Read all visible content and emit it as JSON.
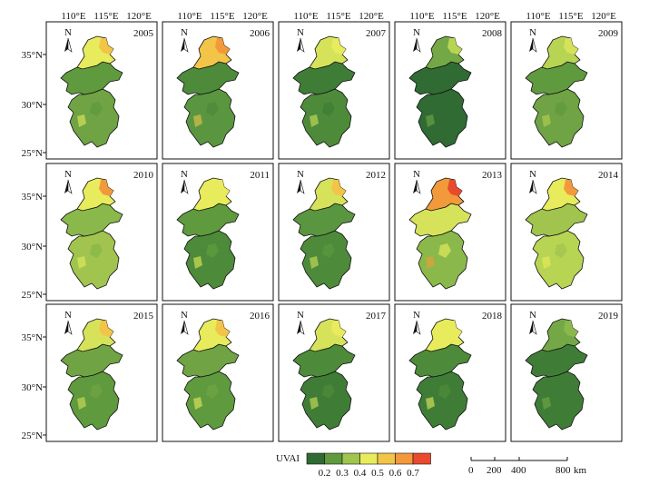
{
  "grid": {
    "top_ticks": [
      "110°E",
      "115°E",
      "120°E"
    ],
    "left_ticks": [
      "35°N",
      "30°N",
      "25°N"
    ],
    "north_label": "N",
    "years": [
      "2005",
      "2006",
      "2007",
      "2008",
      "2009",
      "2010",
      "2011",
      "2012",
      "2013",
      "2014",
      "2015",
      "2016",
      "2017",
      "2018",
      "2019"
    ]
  },
  "maps": [
    {
      "year": "2005",
      "north": "#e8ec5c",
      "central": "#5f9a3e",
      "south": "#6fa343",
      "north_tip": "#f2c548"
    },
    {
      "year": "2006",
      "north": "#f2c548",
      "central": "#4d8a3a",
      "south": "#5a9640",
      "north_tip": "#f29a3b"
    },
    {
      "year": "2007",
      "north": "#d6e35a",
      "central": "#3f7d37",
      "south": "#4d8a3a",
      "north_tip": "#e8ec5c"
    },
    {
      "year": "2008",
      "north": "#74a846",
      "central": "#2f6b33",
      "south": "#2f6b33",
      "north_tip": "#b8d453"
    },
    {
      "year": "2009",
      "north": "#b8d453",
      "central": "#5f9a3e",
      "south": "#6fa343",
      "north_tip": "#d6e35a"
    },
    {
      "year": "2010",
      "north": "#e8ec5c",
      "central": "#8ab84a",
      "south": "#a0c44e",
      "north_tip": "#f29a3b"
    },
    {
      "year": "2011",
      "north": "#e8ec5c",
      "central": "#5f9a3e",
      "south": "#4d8a3a",
      "north_tip": "#e8ec5c"
    },
    {
      "year": "2012",
      "north": "#d6e35a",
      "central": "#5a9640",
      "south": "#4d8a3a",
      "north_tip": "#f2c548"
    },
    {
      "year": "2013",
      "north": "#f29a3b",
      "central": "#d6e35a",
      "south": "#8ab84a",
      "north_tip": "#e94a2d"
    },
    {
      "year": "2014",
      "north": "#e8ec5c",
      "central": "#a0c44e",
      "south": "#b8d453",
      "north_tip": "#f29a3b"
    },
    {
      "year": "2015",
      "north": "#d6e35a",
      "central": "#6fa343",
      "south": "#5f9a3e",
      "north_tip": "#f2c548"
    },
    {
      "year": "2016",
      "north": "#e8ec5c",
      "central": "#6fa343",
      "south": "#5f9a3e",
      "north_tip": "#f2c548"
    },
    {
      "year": "2017",
      "north": "#d6e35a",
      "central": "#4d8a3a",
      "south": "#3f7d37",
      "north_tip": "#e8ec5c"
    },
    {
      "year": "2018",
      "north": "#e8ec5c",
      "central": "#4d8a3a",
      "south": "#3f7d37",
      "north_tip": "#e8ec5c"
    },
    {
      "year": "2019",
      "north": "#74a846",
      "central": "#3f7d37",
      "south": "#3f7d37",
      "north_tip": "#8ab84a"
    }
  ],
  "legend": {
    "title": "UVAI",
    "colors": [
      "#2f6b33",
      "#5f9a3e",
      "#a0c44e",
      "#e8ec5c",
      "#f2c548",
      "#f29a3b",
      "#e94a2d"
    ],
    "labels": [
      "0.2",
      "0.3",
      "0.4",
      "0.5",
      "0.6",
      "0.7"
    ]
  },
  "scale_bar": {
    "labels": [
      "0",
      "200",
      "400",
      "800"
    ],
    "unit": "km"
  }
}
